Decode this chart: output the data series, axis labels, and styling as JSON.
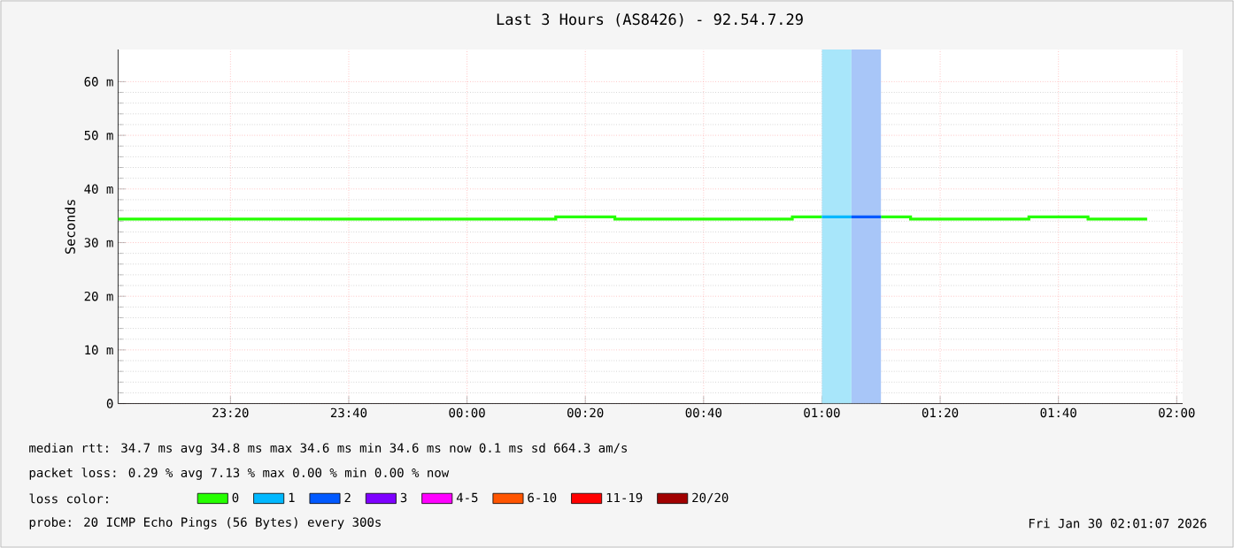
{
  "chart_data": {
    "type": "step",
    "title": "Last 3 Hours (AS8426) - 92.54.7.29",
    "ylabel": "Seconds",
    "legend_title": "loss color:",
    "xlim": [
      "2026-01-29T23:01",
      "2026-01-30T02:01"
    ],
    "xticks": [
      {
        "value": "2026-01-29T23:20",
        "label": "23:20"
      },
      {
        "value": "2026-01-29T23:40",
        "label": "23:40"
      },
      {
        "value": "2026-01-30T00:00",
        "label": "00:00"
      },
      {
        "value": "2026-01-30T00:20",
        "label": "00:20"
      },
      {
        "value": "2026-01-30T00:40",
        "label": "00:40"
      },
      {
        "value": "2026-01-30T01:00",
        "label": "01:00"
      },
      {
        "value": "2026-01-30T01:20",
        "label": "01:20"
      },
      {
        "value": "2026-01-30T01:40",
        "label": "01:40"
      },
      {
        "value": "2026-01-30T02:00",
        "label": "02:00"
      }
    ],
    "ylim": [
      0,
      66
    ],
    "yticks": [
      0,
      {
        "value": 10,
        "label": "10 m"
      },
      {
        "value": 20,
        "label": "20 m"
      },
      {
        "value": 30,
        "label": "30 m"
      },
      {
        "value": 40,
        "label": "40 m"
      },
      {
        "value": 50,
        "label": "50 m"
      },
      {
        "value": 60,
        "label": "60 m"
      }
    ],
    "grid": true,
    "legend": "bottom",
    "series": [
      {
        "name": "0",
        "color": "#26ff00",
        "x": [
          "2026-01-29T23:01",
          "2026-01-30T00:15",
          "2026-01-30T00:25",
          "2026-01-30T00:55",
          "2026-01-30T01:00",
          "2026-01-30T01:10",
          "2026-01-30T01:15",
          "2026-01-30T01:35",
          "2026-01-30T01:45",
          "2026-01-30T01:55"
        ],
        "values": [
          34.4,
          34.8,
          34.4,
          34.8,
          null,
          34.8,
          34.4,
          34.8,
          34.4,
          34.4
        ]
      },
      {
        "name": "1",
        "color": "#00b8ff",
        "x": [
          "2026-01-30T01:00",
          "2026-01-30T01:05"
        ],
        "values": [
          34.8,
          34.8
        ]
      },
      {
        "name": "2",
        "color": "#0059ff",
        "x": [
          "2026-01-30T01:05",
          "2026-01-30T01:10"
        ],
        "values": [
          34.8,
          34.8
        ]
      },
      {
        "name": "3",
        "color": "#7e00ff"
      },
      {
        "name": "4-5",
        "color": "#ff00ff"
      },
      {
        "name": "6-10",
        "color": "#ff5500"
      },
      {
        "name": "11-19",
        "color": "#ff0000"
      },
      {
        "name": "20/20",
        "color": "#a10000"
      }
    ],
    "bands": [
      {
        "axis": "x",
        "from": "2026-01-30T01:00",
        "to": "2026-01-30T01:05",
        "color": "#a8e6fa"
      },
      {
        "axis": "x",
        "from": "2026-01-30T01:05",
        "to": "2026-01-30T01:10",
        "color": "#a8c6f8"
      }
    ],
    "annotations": [
      "median rtt: 34.7 ms avg 34.8 ms max 34.6 ms min 34.6 ms now 0.1 ms sd 664.3 am/s",
      "packet loss: 0.29 % avg 7.13 % max 0.00 % min 0.00 % now",
      "probe: 20 ICMP Echo Pings (56 Bytes) every 300s",
      "Fri Jan 30 02:01:07 2026"
    ]
  }
}
